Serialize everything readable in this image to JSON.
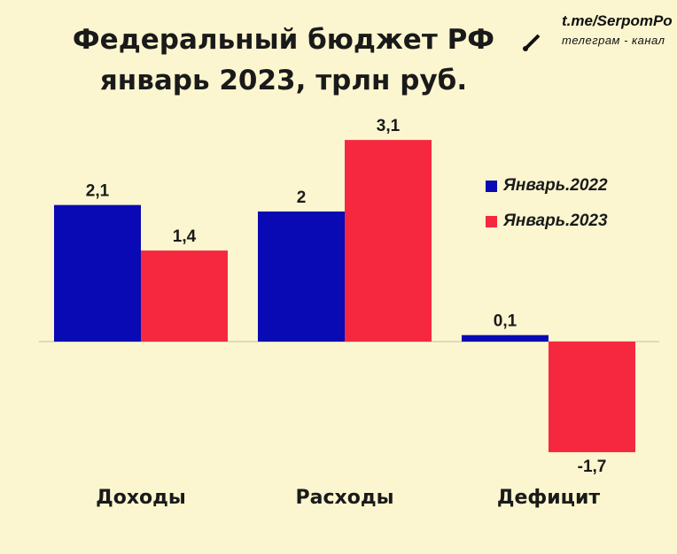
{
  "brand": {
    "url": "t.me/SerpomPo",
    "subtitle": "телеграм - канал",
    "logo_icon": "sickle-moon-icon"
  },
  "colors": {
    "series_2022": "#0a0ab4",
    "series_2023": "#f5283f",
    "background": "#fbf6cf"
  },
  "chart_data": {
    "type": "bar",
    "title": "Федеральный бюджет РФ январь 2023, трлн руб.",
    "title_lines": [
      "Федеральный бюджет РФ",
      "январь 2023, трлн руб."
    ],
    "categories": [
      "Доходы",
      "Расходы",
      "Дефицит"
    ],
    "series": [
      {
        "name": "Январь.2022",
        "values": [
          2.1,
          2.0,
          0.1
        ],
        "labels": [
          "2,1",
          "2",
          "0,1"
        ]
      },
      {
        "name": "Январь.2023",
        "values": [
          1.4,
          3.1,
          -1.7
        ],
        "labels": [
          "1,4",
          "3,1",
          "-1,7"
        ]
      }
    ],
    "ylim": [
      -1.8,
      3.2
    ],
    "grid": false,
    "legend_position": "right"
  }
}
